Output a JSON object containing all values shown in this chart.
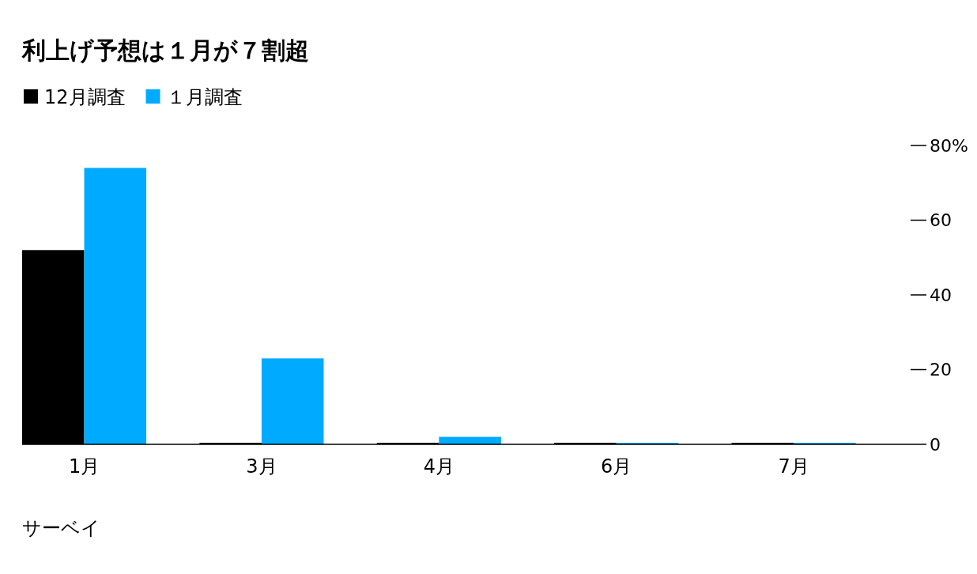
{
  "chart_data": {
    "type": "bar",
    "title": "利上げ予想は１月が７割超",
    "categories": [
      "1月",
      "3月",
      "4月",
      "6月",
      "7月"
    ],
    "series": [
      {
        "name": "12月調査",
        "color": "#000000",
        "values": [
          52,
          0,
          0,
          0,
          0
        ]
      },
      {
        "name": "１月調査",
        "color": "#00aaff",
        "values": [
          74,
          23,
          2,
          0,
          0
        ]
      }
    ],
    "ylim": [
      0,
      80
    ],
    "yticks": [
      0,
      20,
      40,
      60,
      {
        "value": 80,
        "label": "80%"
      }
    ],
    "legend": "top left",
    "grid": false,
    "annotations": [
      "サーベイ"
    ]
  }
}
